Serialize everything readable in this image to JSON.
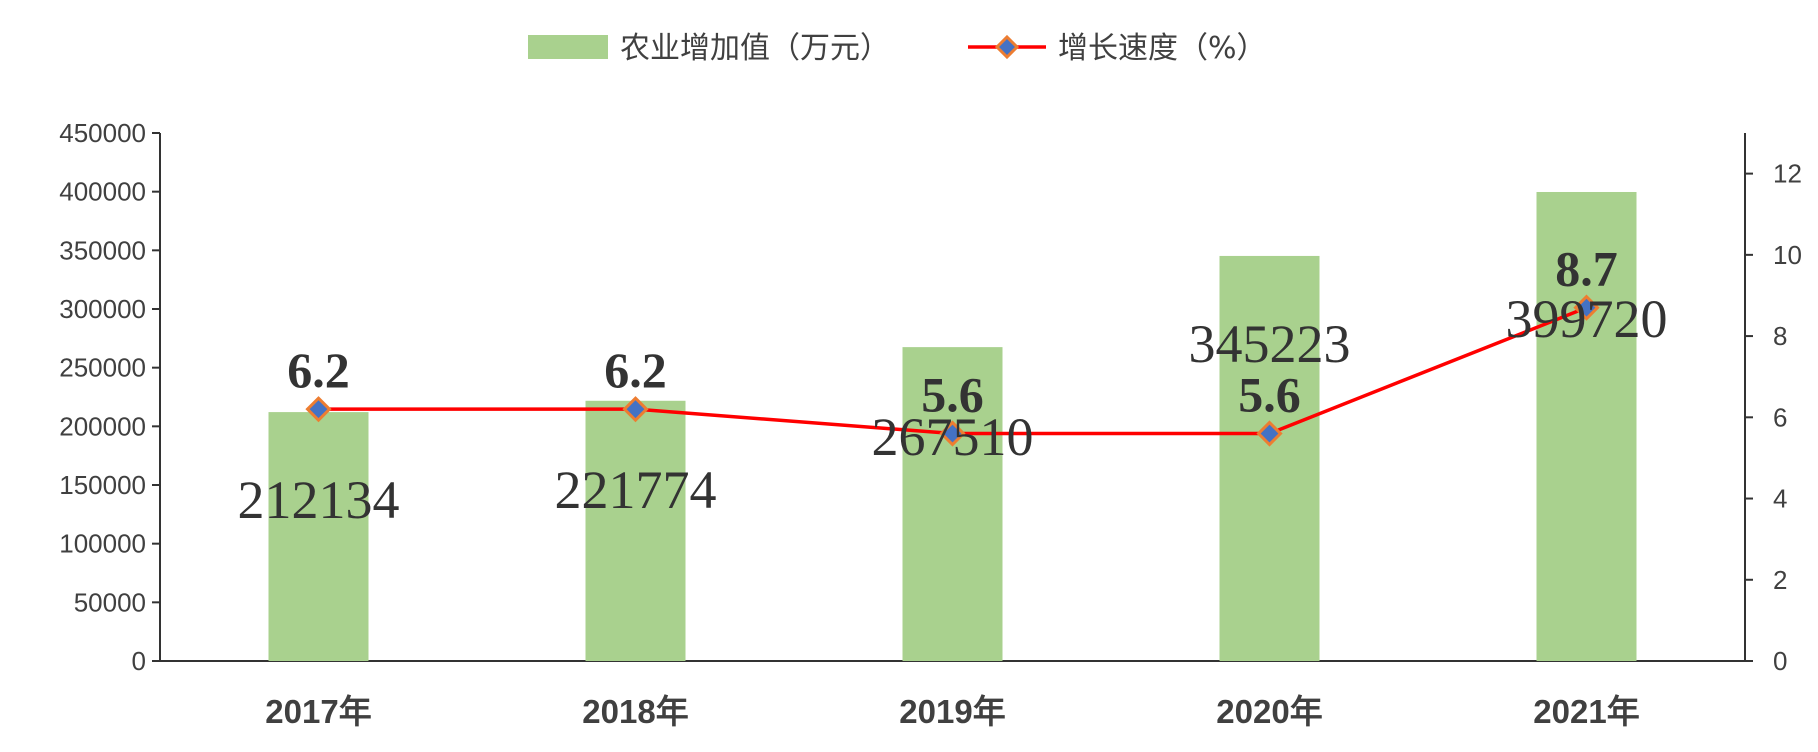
{
  "chart_data": {
    "type": "bar",
    "categories": [
      "2017年",
      "2018年",
      "2019年",
      "2020年",
      "2021年"
    ],
    "series": [
      {
        "name": "农业增加值（万元）",
        "kind": "bar",
        "axis": "left",
        "color": "#a9d18e",
        "values": [
          212134,
          221774,
          267510,
          345223,
          399720
        ],
        "labels": [
          "212134",
          "221774",
          "267510",
          "345223",
          "399720"
        ]
      },
      {
        "name": "增长速度（%）",
        "kind": "line",
        "axis": "right",
        "color": "#ff0000",
        "marker_fill": "#4472c4",
        "marker_edge": "#ed7d31",
        "values": [
          6.2,
          6.2,
          5.6,
          5.6,
          8.7
        ],
        "labels": [
          "6.2",
          "6.2",
          "5.6",
          "5.6",
          "8.7"
        ]
      }
    ],
    "y_left": {
      "ylim": [
        0,
        450000
      ],
      "ticks": [
        "0",
        "50000",
        "100000",
        "150000",
        "200000",
        "250000",
        "300000",
        "350000",
        "400000",
        "450000"
      ]
    },
    "y_right": {
      "ylim": [
        0,
        13
      ],
      "ticks": [
        "0",
        "2",
        "4",
        "6",
        "8",
        "10",
        "12"
      ]
    },
    "grid": false,
    "legend_position": "top-center"
  }
}
